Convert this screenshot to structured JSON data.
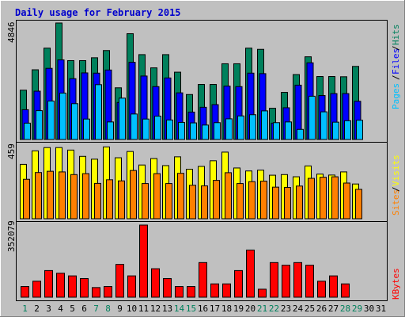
{
  "colors": {
    "background": "#c0c0c0",
    "title": "#0000cc",
    "hits": "#00805c",
    "files": "#0000ff",
    "pages": "#00c0ff",
    "visits": "#ffff00",
    "sites": "#ff8000",
    "kbytes": "#ff0000",
    "weekend_day": "#00805c",
    "weekday": "#000000"
  },
  "chart_data": [
    {
      "type": "bar",
      "title": "Daily usage for February 2015",
      "ymax_label": "4846",
      "ylim": [
        0,
        4846
      ],
      "legend": [
        "Pages",
        "Files",
        "Hits"
      ],
      "categories": [
        "1",
        "2",
        "3",
        "4",
        "5",
        "6",
        "7",
        "8",
        "9",
        "10",
        "11",
        "12",
        "13",
        "14",
        "15",
        "16",
        "17",
        "18",
        "19",
        "20",
        "21",
        "22",
        "23",
        "24",
        "25",
        "26",
        "27",
        "28",
        "29",
        "30",
        "31"
      ],
      "series": [
        {
          "name": "Hits",
          "values": [
            2050,
            2900,
            3800,
            4846,
            3280,
            3280,
            3400,
            3700,
            2150,
            4400,
            3530,
            2980,
            3530,
            2800,
            1870,
            2290,
            2290,
            3150,
            3150,
            3800,
            3750,
            1300,
            1960,
            2700,
            3440,
            2620,
            2620,
            2610,
            3040,
            null,
            null
          ]
        },
        {
          "name": "Files",
          "values": [
            1240,
            2010,
            2960,
            3310,
            2530,
            2770,
            2760,
            2890,
            1540,
            3210,
            2640,
            2200,
            2560,
            1940,
            1140,
            1340,
            1450,
            2220,
            2200,
            2760,
            2740,
            680,
            1320,
            2260,
            3190,
            1830,
            1910,
            1910,
            1590,
            null,
            null
          ]
        },
        {
          "name": "Pages",
          "values": [
            680,
            1200,
            1600,
            1930,
            1490,
            850,
            2280,
            730,
            1720,
            1060,
            850,
            970,
            810,
            710,
            690,
            600,
            700,
            860,
            980,
            1030,
            1190,
            700,
            730,
            420,
            1800,
            1150,
            720,
            780,
            800,
            null,
            null
          ]
        }
      ]
    },
    {
      "type": "bar",
      "ymax_label": "459",
      "ylim": [
        0,
        459
      ],
      "legend": [
        "Sites",
        "Visits"
      ],
      "categories": [
        "1",
        "2",
        "3",
        "4",
        "5",
        "6",
        "7",
        "8",
        "9",
        "10",
        "11",
        "12",
        "13",
        "14",
        "15",
        "16",
        "17",
        "18",
        "19",
        "20",
        "21",
        "22",
        "23",
        "24",
        "25",
        "26",
        "27",
        "28",
        "29",
        "30",
        "31"
      ],
      "series": [
        {
          "name": "Visits",
          "values": [
            346,
            432,
            453,
            453,
            437,
            397,
            379,
            457,
            388,
            428,
            342,
            383,
            338,
            394,
            315,
            333,
            369,
            424,
            323,
            304,
            309,
            277,
            281,
            267,
            336,
            284,
            278,
            298,
            221,
            null,
            null
          ]
        },
        {
          "name": "Sites",
          "values": [
            251,
            294,
            302,
            298,
            281,
            287,
            225,
            248,
            241,
            307,
            224,
            287,
            224,
            289,
            213,
            209,
            244,
            293,
            224,
            236,
            239,
            201,
            199,
            208,
            257,
            264,
            267,
            227,
            187,
            null,
            null
          ]
        }
      ]
    },
    {
      "type": "bar",
      "ymax_label": "352079",
      "ylim": [
        0,
        352079
      ],
      "legend": [
        "KBytes"
      ],
      "categories": [
        "1",
        "2",
        "3",
        "4",
        "5",
        "6",
        "7",
        "8",
        "9",
        "10",
        "11",
        "12",
        "13",
        "14",
        "15",
        "16",
        "17",
        "18",
        "19",
        "20",
        "21",
        "22",
        "23",
        "24",
        "25",
        "26",
        "27",
        "28",
        "29",
        "30",
        "31"
      ],
      "series": [
        {
          "name": "KBytes",
          "values": [
            52000,
            78000,
            130000,
            117000,
            104000,
            91000,
            47000,
            52000,
            160000,
            104000,
            352079,
            139000,
            91000,
            52000,
            52000,
            169000,
            65000,
            65000,
            130000,
            230000,
            39000,
            169000,
            156000,
            169000,
            156000,
            78000,
            104000,
            65000,
            null,
            null,
            null
          ]
        }
      ]
    }
  ],
  "x_axis": {
    "days": [
      "1",
      "2",
      "3",
      "4",
      "5",
      "6",
      "7",
      "8",
      "9",
      "10",
      "11",
      "12",
      "13",
      "14",
      "15",
      "16",
      "17",
      "18",
      "19",
      "20",
      "21",
      "22",
      "23",
      "24",
      "25",
      "26",
      "27",
      "28",
      "29",
      "30",
      "31"
    ],
    "weekend_days": [
      "1",
      "7",
      "8",
      "14",
      "15",
      "21",
      "22",
      "28",
      "29"
    ]
  }
}
